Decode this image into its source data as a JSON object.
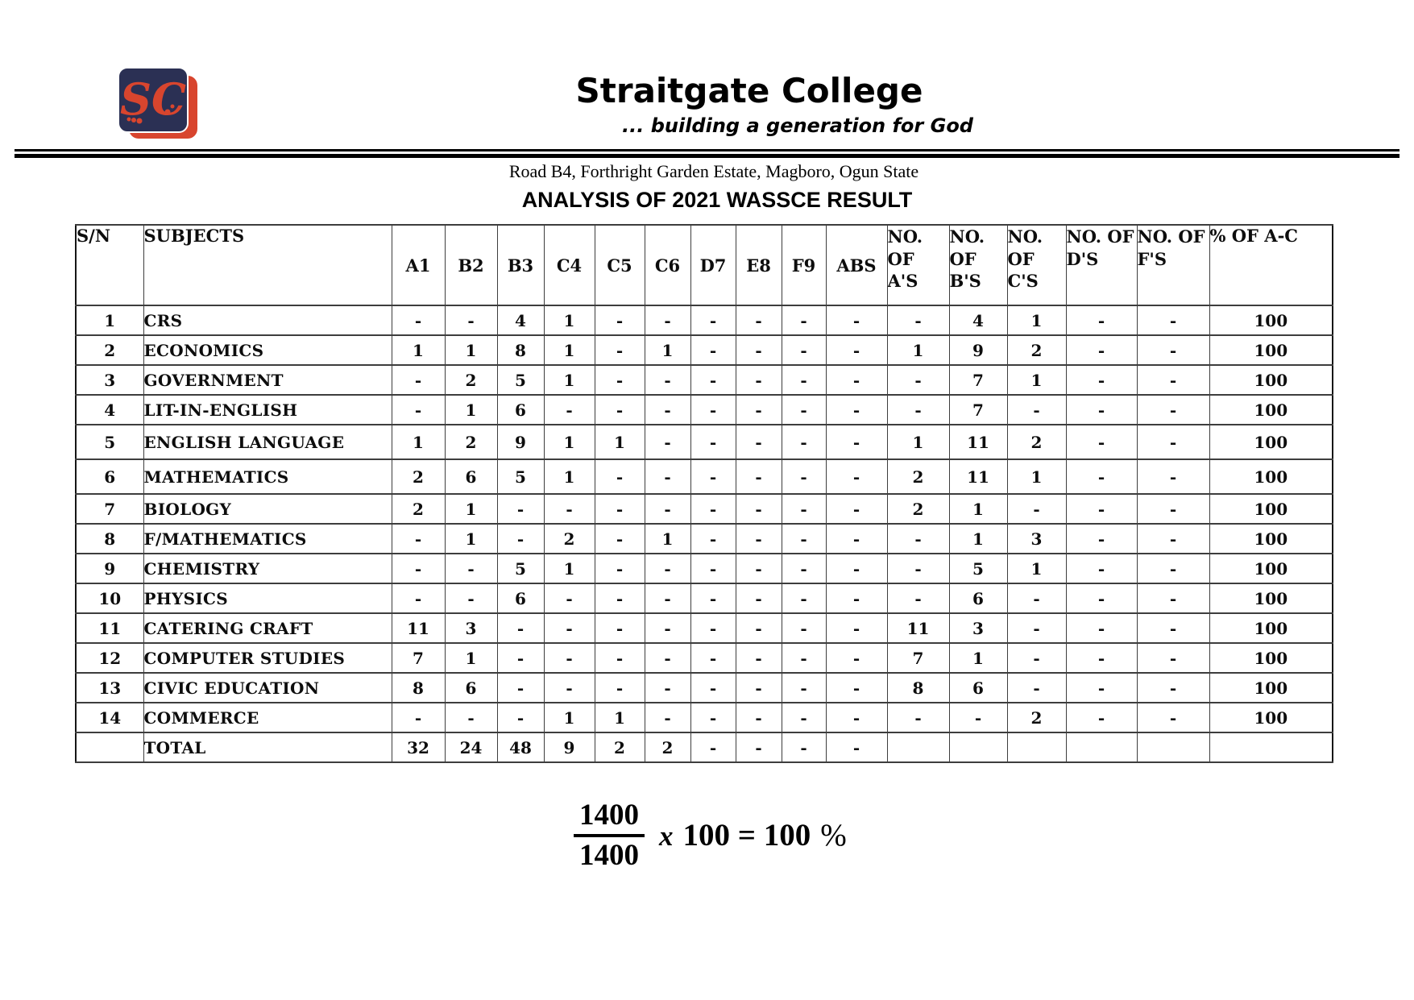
{
  "page": {
    "school_name": "Straitgate College",
    "slogan": "... building a generation for God",
    "address": "Road B4, Forthright Garden Estate, Magboro, Ogun State",
    "title": "ANALYSIS OF 2021 WASSCE RESULT",
    "logo": {
      "monogram": "SC",
      "navy": "#2b3054",
      "red": "#d8452e"
    }
  },
  "table": {
    "columns": [
      "S/N",
      "SUBJECTS",
      "A1",
      "B2",
      "B3",
      "C4",
      "C5",
      "C6",
      "D7",
      "E8",
      "F9",
      "ABS",
      "NO. OF A'S",
      "NO. OF B'S",
      "NO. OF C'S",
      "NO. OF D'S",
      "NO. OF F'S",
      "% OF A-C"
    ],
    "rows": [
      [
        "1",
        "CRS",
        "-",
        "-",
        "4",
        "1",
        "-",
        "-",
        "-",
        "-",
        "-",
        "-",
        "-",
        "4",
        "1",
        "-",
        "-",
        "100"
      ],
      [
        "2",
        "ECONOMICS",
        "1",
        "1",
        "8",
        "1",
        "-",
        "1",
        "-",
        "-",
        "-",
        "-",
        "1",
        "9",
        "2",
        "-",
        "-",
        "100"
      ],
      [
        "3",
        "GOVERNMENT",
        "-",
        "2",
        "5",
        "1",
        "-",
        "-",
        "-",
        "-",
        "-",
        "-",
        "-",
        "7",
        "1",
        "-",
        "-",
        "100"
      ],
      [
        "4",
        "LIT-IN-ENGLISH",
        "-",
        "1",
        "6",
        "-",
        "-",
        "-",
        "-",
        "-",
        "-",
        "-",
        "-",
        "7",
        "-",
        "-",
        "-",
        "100"
      ],
      [
        "5",
        "ENGLISH LANGUAGE",
        "1",
        "2",
        "9",
        "1",
        "1",
        "-",
        "-",
        "-",
        "-",
        "-",
        "1",
        "11",
        "2",
        "-",
        "-",
        "100"
      ],
      [
        "6",
        "MATHEMATICS",
        "2",
        "6",
        "5",
        "1",
        "-",
        "-",
        "-",
        "-",
        "-",
        "-",
        "2",
        "11",
        "1",
        "-",
        "-",
        "100"
      ],
      [
        "7",
        "BIOLOGY",
        "2",
        "1",
        "-",
        "-",
        "-",
        "-",
        "-",
        "-",
        "-",
        "-",
        "2",
        "1",
        "-",
        "-",
        "-",
        "100"
      ],
      [
        "8",
        "F/MATHEMATICS",
        "-",
        "1",
        "-",
        "2",
        "-",
        "1",
        "-",
        "-",
        "-",
        "-",
        "-",
        "1",
        "3",
        "-",
        "-",
        "100"
      ],
      [
        "9",
        "CHEMISTRY",
        "-",
        "-",
        "5",
        "1",
        "-",
        "-",
        "-",
        "-",
        "-",
        "-",
        "-",
        "5",
        "1",
        "-",
        "-",
        "100"
      ],
      [
        "10",
        "PHYSICS",
        "-",
        "-",
        "6",
        "-",
        "-",
        "-",
        "-",
        "-",
        "-",
        "-",
        "-",
        "6",
        "-",
        "-",
        "-",
        "100"
      ],
      [
        "11",
        "CATERING CRAFT",
        "11",
        "3",
        "-",
        "-",
        "-",
        "-",
        "-",
        "-",
        "-",
        "-",
        "11",
        "3",
        "-",
        "-",
        "-",
        "100"
      ],
      [
        "12",
        "COMPUTER STUDIES",
        "7",
        "1",
        "-",
        "-",
        "-",
        "-",
        "-",
        "-",
        "-",
        "-",
        "7",
        "1",
        "-",
        "-",
        "-",
        "100"
      ],
      [
        "13",
        "CIVIC EDUCATION",
        "8",
        "6",
        "-",
        "-",
        "-",
        "-",
        "-",
        "-",
        "-",
        "-",
        "8",
        "6",
        "-",
        "-",
        "-",
        "100"
      ],
      [
        "14",
        "COMMERCE",
        "-",
        "-",
        "-",
        "1",
        "1",
        "-",
        "-",
        "-",
        "-",
        "-",
        "-",
        "-",
        "2",
        "-",
        "-",
        "100"
      ],
      [
        "",
        "TOTAL",
        "32",
        "24",
        "48",
        "9",
        "2",
        "2",
        "-",
        "-",
        "-",
        "-",
        "",
        "",
        "",
        "",
        "",
        ""
      ]
    ]
  },
  "formula": {
    "numerator": "1400",
    "denominator": "1400",
    "x": "x",
    "expression": "100 = 100",
    "percent": "%"
  }
}
